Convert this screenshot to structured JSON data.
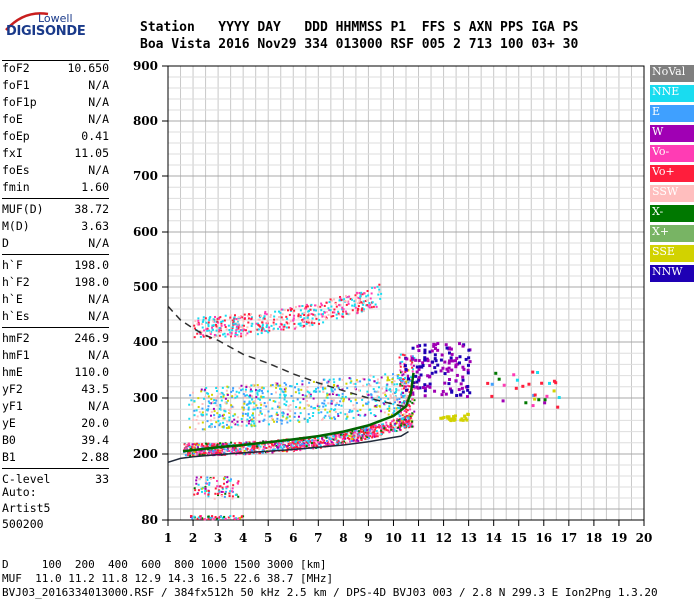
{
  "logo": {
    "top": "Lowell",
    "main": "DIGISONDE"
  },
  "header": {
    "row1": "Station   YYYY DAY   DDD HHMMSS P1  FFS S AXN PPS IGA PS",
    "row2": "Boa Vista 2016 Nov29 334 013000 RSF 005 2 713 100 03+ 30"
  },
  "params": [
    {
      "label": "foF2",
      "value": "10.650"
    },
    {
      "label": "foF1",
      "value": "N/A"
    },
    {
      "label": "foF1p",
      "value": "N/A"
    },
    {
      "label": "foE",
      "value": "N/A"
    },
    {
      "label": "foEp",
      "value": "0.41"
    },
    {
      "label": "fxI",
      "value": "11.05"
    },
    {
      "label": "foEs",
      "value": "N/A"
    },
    {
      "label": "fmin",
      "value": "1.60"
    },
    {
      "label": "MUF(D)",
      "value": "38.72"
    },
    {
      "label": "M(D)",
      "value": "3.63"
    },
    {
      "label": "D",
      "value": "N/A"
    },
    {
      "label": "h`F",
      "value": "198.0"
    },
    {
      "label": "h`F2",
      "value": "198.0"
    },
    {
      "label": "h`E",
      "value": "N/A"
    },
    {
      "label": "h`Es",
      "value": "N/A"
    },
    {
      "label": "hmF2",
      "value": "246.9"
    },
    {
      "label": "hmF1",
      "value": "N/A"
    },
    {
      "label": "hmE",
      "value": "110.0"
    },
    {
      "label": "yF2",
      "value": "43.5"
    },
    {
      "label": "yF1",
      "value": "N/A"
    },
    {
      "label": "yE",
      "value": "20.0"
    },
    {
      "label": "B0",
      "value": "39.4"
    },
    {
      "label": "B1",
      "value": "2.88"
    },
    {
      "label": "C-level",
      "value": "33"
    }
  ],
  "auto": {
    "line1": "Auto:",
    "line2": "Artist5",
    "line3": "500200"
  },
  "legend": [
    {
      "label": "NoVal",
      "color": "#7f7f7f"
    },
    {
      "label": "NNE",
      "color": "#19dcf0"
    },
    {
      "label": "E",
      "color": "#3fa0ff"
    },
    {
      "label": "W",
      "color": "#a000b4"
    },
    {
      "label": "Vo-",
      "color": "#ff3cb4"
    },
    {
      "label": "Vo+",
      "color": "#ff1e3c"
    },
    {
      "label": "SSW",
      "color": "#ffbebe"
    },
    {
      "label": "X-",
      "color": "#007800"
    },
    {
      "label": "X+",
      "color": "#78b464"
    },
    {
      "label": "SSE",
      "color": "#d2d200"
    },
    {
      "label": "NNW",
      "color": "#1e00b4"
    }
  ],
  "bottom": {
    "line1": "D     100  200  400  600  800 1000 1500 3000 [km]",
    "line2": "MUF  11.0 11.2 11.8 12.9 14.3 16.5 22.6 38.7 [MHz]",
    "line3": "BVJ03_2016334013000.RSF / 384fx512h 50 kHz 2.5 km / DPS-4D BVJ03 003 / 2.8 N 299.3 E Ion2Png 1.3.20"
  },
  "chart_data": {
    "type": "scatter",
    "xlim": [
      1,
      20
    ],
    "ylim": [
      80,
      900
    ],
    "x_ticks": [
      1,
      2,
      3,
      4,
      5,
      6,
      7,
      8,
      9,
      10,
      11,
      12,
      13,
      14,
      15,
      16,
      17,
      18,
      19,
      20
    ],
    "y_ticks": [
      80,
      200,
      300,
      400,
      500,
      600,
      700,
      800,
      900
    ],
    "grid": true,
    "legend_position": "right",
    "traces": [
      {
        "name": "F2 profile (solid)",
        "x": [
          1.0,
          1.5,
          2.0,
          3.0,
          4.0,
          5.0,
          6.0,
          7.0,
          8.0,
          9.0,
          9.8,
          10.3,
          10.6
        ],
        "y": [
          185,
          192,
          195,
          199,
          202,
          205,
          208,
          212,
          216,
          222,
          228,
          232,
          240
        ]
      },
      {
        "name": "model (dashed)",
        "x": [
          1.0,
          1.5,
          2.0,
          2.5,
          3.0,
          4.0,
          5.0,
          6.0,
          7.0,
          8.0,
          9.0,
          10.0,
          10.6
        ],
        "y": [
          465,
          440,
          425,
          412,
          403,
          378,
          362,
          343,
          327,
          313,
          300,
          289,
          283
        ]
      },
      {
        "name": "trace",
        "x": [
          1.6,
          2.0,
          3.0,
          4.0,
          5.0,
          6.0,
          7.0,
          8.0,
          9.0,
          10.0,
          10.5,
          10.7,
          10.8
        ],
        "y": [
          205,
          207,
          212,
          216,
          221,
          226,
          232,
          240,
          251,
          268,
          285,
          310,
          345
        ]
      }
    ]
  }
}
